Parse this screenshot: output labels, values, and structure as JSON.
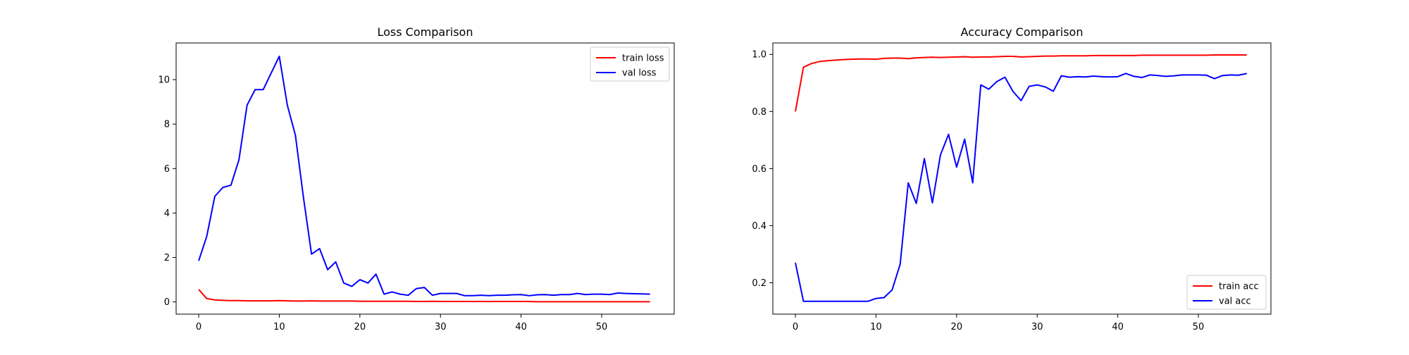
{
  "chart_data": [
    {
      "type": "line",
      "title": "Loss Comparison",
      "xlabel": "",
      "ylabel": "",
      "xlim": [
        -2.8,
        59
      ],
      "ylim": [
        -0.55,
        11.65
      ],
      "xticks": [
        0,
        10,
        20,
        30,
        40,
        50
      ],
      "yticks": [
        0,
        2,
        4,
        6,
        8,
        10
      ],
      "legend": "top-right",
      "grid": false,
      "series": [
        {
          "name": "train loss",
          "color": "#ff0000",
          "x": [
            0,
            1,
            2,
            3,
            4,
            5,
            6,
            7,
            8,
            9,
            10,
            11,
            12,
            13,
            14,
            15,
            16,
            17,
            18,
            19,
            20,
            21,
            22,
            23,
            24,
            25,
            26,
            27,
            28,
            29,
            30,
            31,
            32,
            33,
            34,
            35,
            36,
            37,
            38,
            39,
            40,
            41,
            42,
            43,
            44,
            45,
            46,
            47,
            48,
            49,
            50,
            51,
            52,
            53,
            54,
            55,
            56
          ],
          "values": [
            0.56,
            0.15,
            0.09,
            0.07,
            0.06,
            0.06,
            0.05,
            0.05,
            0.05,
            0.05,
            0.06,
            0.05,
            0.04,
            0.04,
            0.05,
            0.04,
            0.04,
            0.04,
            0.04,
            0.04,
            0.03,
            0.03,
            0.03,
            0.03,
            0.03,
            0.03,
            0.03,
            0.02,
            0.02,
            0.03,
            0.02,
            0.02,
            0.02,
            0.02,
            0.02,
            0.02,
            0.02,
            0.02,
            0.02,
            0.02,
            0.02,
            0.02,
            0.01,
            0.01,
            0.01,
            0.01,
            0.01,
            0.01,
            0.01,
            0.01,
            0.01,
            0.01,
            0.01,
            0.01,
            0.01,
            0.01,
            0.01
          ]
        },
        {
          "name": "val loss",
          "color": "#0000ff",
          "x": [
            0,
            1,
            2,
            3,
            4,
            5,
            6,
            7,
            8,
            9,
            10,
            11,
            12,
            13,
            14,
            15,
            16,
            17,
            18,
            19,
            20,
            21,
            22,
            23,
            24,
            25,
            26,
            27,
            28,
            29,
            30,
            31,
            32,
            33,
            34,
            35,
            36,
            37,
            38,
            39,
            40,
            41,
            42,
            43,
            44,
            45,
            46,
            47,
            48,
            49,
            50,
            51,
            52,
            53,
            54,
            55,
            56
          ],
          "values": [
            1.85,
            2.95,
            4.75,
            5.15,
            5.25,
            6.4,
            8.85,
            9.55,
            9.55,
            10.3,
            11.05,
            8.85,
            7.5,
            4.7,
            2.15,
            2.4,
            1.45,
            1.8,
            0.85,
            0.7,
            1.0,
            0.85,
            1.25,
            0.35,
            0.45,
            0.35,
            0.3,
            0.6,
            0.65,
            0.3,
            0.38,
            0.38,
            0.38,
            0.28,
            0.28,
            0.3,
            0.28,
            0.3,
            0.3,
            0.32,
            0.33,
            0.28,
            0.32,
            0.33,
            0.3,
            0.33,
            0.33,
            0.38,
            0.33,
            0.35,
            0.35,
            0.33,
            0.4,
            0.38,
            0.37,
            0.36,
            0.35
          ]
        }
      ]
    },
    {
      "type": "line",
      "title": "Accuracy Comparison",
      "xlabel": "",
      "ylabel": "",
      "xlim": [
        -2.8,
        59
      ],
      "ylim": [
        0.09,
        1.04
      ],
      "xticks": [
        0,
        10,
        20,
        30,
        40,
        50
      ],
      "yticks": [
        0.2,
        0.4,
        0.6,
        0.8,
        1.0
      ],
      "ytick_labels": [
        "0.2",
        "0.4",
        "0.6",
        "0.8",
        "1.0"
      ],
      "legend": "bottom-right",
      "grid": false,
      "series": [
        {
          "name": "train acc",
          "color": "#ff0000",
          "x": [
            0,
            1,
            2,
            3,
            4,
            5,
            6,
            7,
            8,
            9,
            10,
            11,
            12,
            13,
            14,
            15,
            16,
            17,
            18,
            19,
            20,
            21,
            22,
            23,
            24,
            25,
            26,
            27,
            28,
            29,
            30,
            31,
            32,
            33,
            34,
            35,
            36,
            37,
            38,
            39,
            40,
            41,
            42,
            43,
            44,
            45,
            46,
            47,
            48,
            49,
            50,
            51,
            52,
            53,
            54,
            55,
            56
          ],
          "values": [
            0.8,
            0.955,
            0.968,
            0.975,
            0.978,
            0.98,
            0.982,
            0.983,
            0.984,
            0.984,
            0.983,
            0.986,
            0.987,
            0.987,
            0.985,
            0.988,
            0.989,
            0.99,
            0.989,
            0.99,
            0.991,
            0.992,
            0.99,
            0.991,
            0.991,
            0.992,
            0.993,
            0.993,
            0.991,
            0.992,
            0.993,
            0.994,
            0.994,
            0.995,
            0.995,
            0.995,
            0.995,
            0.996,
            0.996,
            0.996,
            0.996,
            0.996,
            0.996,
            0.997,
            0.997,
            0.997,
            0.997,
            0.997,
            0.997,
            0.997,
            0.997,
            0.997,
            0.998,
            0.998,
            0.998,
            0.998,
            0.998
          ]
        },
        {
          "name": "val acc",
          "color": "#0000ff",
          "x": [
            0,
            1,
            2,
            3,
            4,
            5,
            6,
            7,
            8,
            9,
            10,
            11,
            12,
            13,
            14,
            15,
            16,
            17,
            18,
            19,
            20,
            21,
            22,
            23,
            24,
            25,
            26,
            27,
            28,
            29,
            30,
            31,
            32,
            33,
            34,
            35,
            36,
            37,
            38,
            39,
            40,
            41,
            42,
            43,
            44,
            45,
            46,
            47,
            48,
            49,
            50,
            51,
            52,
            53,
            54,
            55,
            56
          ],
          "values": [
            0.27,
            0.135,
            0.135,
            0.135,
            0.135,
            0.135,
            0.135,
            0.135,
            0.135,
            0.135,
            0.145,
            0.148,
            0.175,
            0.265,
            0.55,
            0.478,
            0.635,
            0.48,
            0.648,
            0.72,
            0.605,
            0.703,
            0.55,
            0.893,
            0.878,
            0.905,
            0.92,
            0.87,
            0.838,
            0.888,
            0.893,
            0.886,
            0.871,
            0.925,
            0.92,
            0.922,
            0.921,
            0.924,
            0.922,
            0.921,
            0.922,
            0.933,
            0.923,
            0.919,
            0.928,
            0.926,
            0.923,
            0.925,
            0.928,
            0.928,
            0.928,
            0.927,
            0.915,
            0.926,
            0.928,
            0.927,
            0.933
          ]
        }
      ]
    }
  ]
}
